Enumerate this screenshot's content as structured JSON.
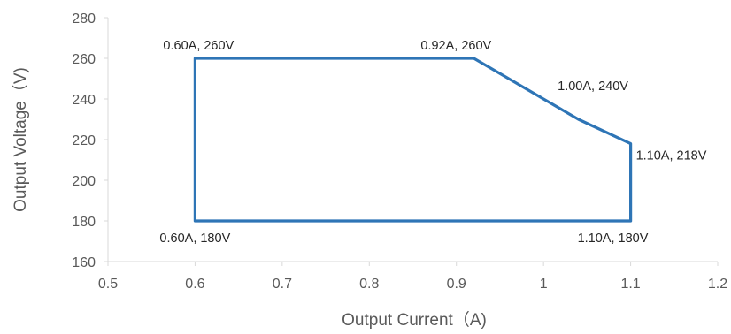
{
  "chart_data": {
    "type": "line",
    "title": "",
    "xlabel": "Output Current（A)",
    "ylabel": "Output Voltage（V)",
    "xlim": [
      0.5,
      1.2
    ],
    "ylim": [
      160,
      280
    ],
    "x_ticks": [
      0.5,
      0.6,
      0.7,
      0.8,
      0.9,
      1,
      1.1,
      1.2
    ],
    "x_tick_labels": [
      "0.5",
      "0.6",
      "0.7",
      "0.8",
      "0.9",
      "1",
      "1.1",
      "1.2"
    ],
    "y_ticks": [
      160,
      180,
      200,
      220,
      240,
      260,
      280
    ],
    "y_tick_labels": [
      "160",
      "180",
      "200",
      "220",
      "240",
      "260",
      "280"
    ],
    "grid": false,
    "legend": "none",
    "series": [
      {
        "color": "#2e75b6",
        "x": [
          0.6,
          0.6,
          0.92,
          0.96,
          1.0,
          1.04,
          1.1,
          1.1,
          0.6
        ],
        "y": [
          180,
          260,
          260,
          250,
          240,
          230,
          218,
          180,
          180
        ]
      }
    ],
    "annotations": [
      {
        "text": "0.60A, 260V",
        "x": 0.6,
        "y": 260,
        "pos": "above"
      },
      {
        "text": "0.92A, 260V",
        "x": 0.92,
        "y": 260,
        "pos": "above-left"
      },
      {
        "text": "1.00A, 240V",
        "x": 1.0,
        "y": 240,
        "pos": "above-right"
      },
      {
        "text": "1.10A, 218V",
        "x": 1.1,
        "y": 218,
        "pos": "right"
      },
      {
        "text": "0.60A, 180V",
        "x": 0.6,
        "y": 180,
        "pos": "below"
      },
      {
        "text": "1.10A, 180V",
        "x": 1.1,
        "y": 180,
        "pos": "below-left"
      }
    ]
  }
}
